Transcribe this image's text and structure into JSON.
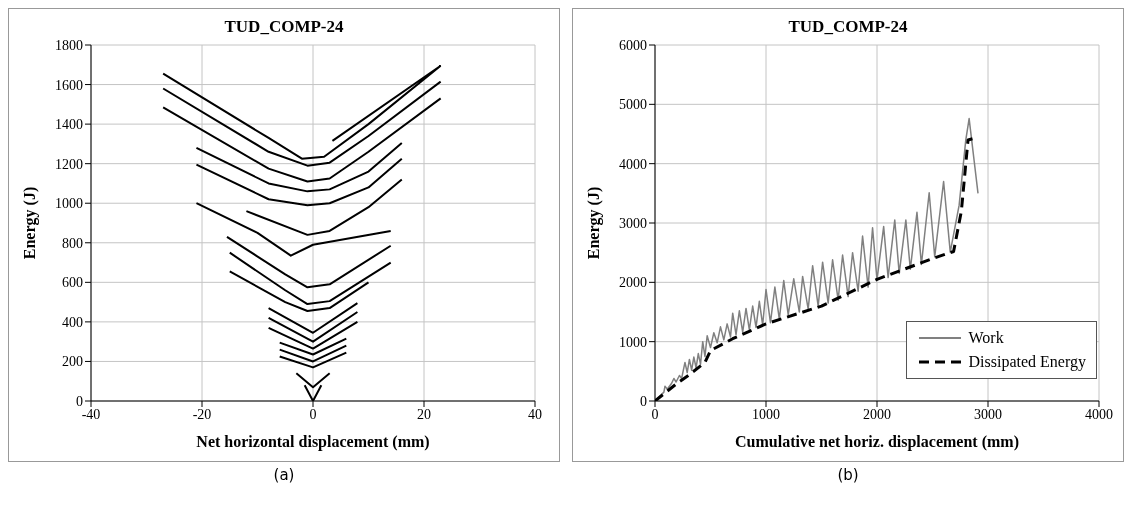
{
  "chart_data": [
    {
      "type": "line",
      "title": "TUD_COMP-24",
      "xlabel": "Net horizontal displacement (mm)",
      "ylabel": "Energy (J)",
      "grid": true,
      "legend": false,
      "marker": "none",
      "xlim": [
        -40,
        40
      ],
      "xticks": [
        -40,
        -20,
        0,
        20,
        40
      ],
      "ylim": [
        0,
        1800
      ],
      "yticks": [
        0,
        200,
        400,
        600,
        800,
        1000,
        1200,
        1400,
        1600,
        1800
      ],
      "annotations": [
        "(a)"
      ],
      "series": [
        {
          "color": "#000000",
          "x": [
            -27,
            -8,
            -2,
            2,
            10,
            23,
            null,
            -27,
            -8,
            -1,
            3,
            10,
            23,
            null,
            -27,
            -8,
            -1,
            3,
            10,
            23,
            null,
            3.5,
            23,
            null,
            -21,
            -8,
            -1,
            3,
            10,
            16,
            null,
            -21,
            -8,
            -1,
            3,
            10,
            16,
            null,
            -21,
            -10,
            -4,
            0,
            14,
            null,
            -12,
            -1,
            3,
            10,
            16,
            null,
            -15.5,
            -5,
            -1,
            3,
            14,
            null,
            -15,
            -5,
            -1,
            3,
            14,
            null,
            -15,
            -5,
            -1,
            3,
            10,
            null,
            -8,
            0,
            8,
            null,
            -8,
            0,
            8,
            null,
            -8,
            0,
            8,
            null,
            -6,
            0,
            6,
            null,
            -6,
            0,
            6,
            null,
            -6,
            0,
            6,
            null,
            -3,
            0,
            3,
            null,
            -1.5,
            0,
            1.5
          ],
          "values": [
            1655,
            1330,
            1225,
            1235,
            1400,
            1695,
            null,
            1580,
            1260,
            1190,
            1205,
            1340,
            1615,
            null,
            1485,
            1175,
            1110,
            1125,
            1260,
            1530,
            null,
            1315,
            1695,
            null,
            1280,
            1100,
            1060,
            1070,
            1160,
            1305,
            null,
            1195,
            1020,
            990,
            1000,
            1080,
            1225,
            null,
            1000,
            850,
            735,
            790,
            860,
            null,
            960,
            840,
            860,
            980,
            1120,
            null,
            830,
            640,
            575,
            590,
            785,
            null,
            750,
            560,
            490,
            505,
            700,
            null,
            655,
            500,
            455,
            470,
            600,
            null,
            470,
            345,
            495,
            null,
            420,
            300,
            450,
            null,
            370,
            265,
            400,
            null,
            295,
            235,
            315,
            null,
            260,
            200,
            280,
            null,
            225,
            170,
            245,
            null,
            140,
            70,
            140,
            null,
            80,
            0,
            80
          ]
        }
      ]
    },
    {
      "type": "line",
      "title": "TUD_COMP-24",
      "xlabel": "Cumulative net horiz. displacement (mm)",
      "ylabel": "Energy (J)",
      "grid": true,
      "legend": "bottom right",
      "marker": "none",
      "xlim": [
        0,
        4000
      ],
      "xticks": [
        0,
        1000,
        2000,
        3000,
        4000
      ],
      "ylim": [
        0,
        6000
      ],
      "yticks": [
        0,
        1000,
        2000,
        3000,
        4000,
        5000,
        6000
      ],
      "annotations": [
        "(b)"
      ],
      "series": [
        {
          "name": "Work",
          "color": "#808080",
          "line_style": "solid",
          "x": [
            0,
            80,
            90,
            110,
            150,
            170,
            190,
            220,
            240,
            270,
            290,
            310,
            330,
            350,
            370,
            390,
            410,
            430,
            450,
            470,
            500,
            530,
            560,
            590,
            620,
            650,
            680,
            700,
            730,
            760,
            790,
            820,
            850,
            880,
            910,
            940,
            970,
            1000,
            1040,
            1080,
            1120,
            1160,
            1200,
            1250,
            1300,
            1330,
            1380,
            1420,
            1470,
            1510,
            1560,
            1600,
            1650,
            1690,
            1740,
            1780,
            1830,
            1870,
            1920,
            1960,
            2000,
            2060,
            2100,
            2160,
            2200,
            2260,
            2300,
            2360,
            2400,
            2470,
            2520,
            2600,
            2660,
            2740,
            2800,
            2830,
            2910
          ],
          "values": [
            0,
            150,
            250,
            200,
            300,
            380,
            320,
            430,
            380,
            650,
            480,
            700,
            520,
            740,
            560,
            800,
            620,
            1000,
            750,
            1100,
            900,
            1150,
            980,
            1250,
            1030,
            1300,
            1080,
            1480,
            1120,
            1520,
            1160,
            1560,
            1200,
            1600,
            1240,
            1680,
            1280,
            1880,
            1320,
            1920,
            1380,
            2030,
            1450,
            2060,
            1500,
            2100,
            1550,
            2280,
            1600,
            2340,
            1650,
            2380,
            1700,
            2460,
            1760,
            2500,
            1850,
            2780,
            1920,
            2920,
            2040,
            2940,
            2080,
            3050,
            2150,
            3050,
            2220,
            3180,
            2300,
            3510,
            2430,
            3700,
            2510,
            3300,
            4400,
            4760,
            3500
          ]
        },
        {
          "name": "Dissipated Energy",
          "color": "#000000",
          "line_style": "dashed",
          "x": [
            0,
            100,
            200,
            300,
            450,
            500,
            700,
            1000,
            1500,
            2000,
            2500,
            2690,
            2760,
            2820,
            2860
          ],
          "values": [
            0,
            150,
            300,
            430,
            650,
            850,
            1050,
            1300,
            1600,
            2050,
            2400,
            2520,
            3200,
            4400,
            4420
          ]
        }
      ]
    }
  ]
}
